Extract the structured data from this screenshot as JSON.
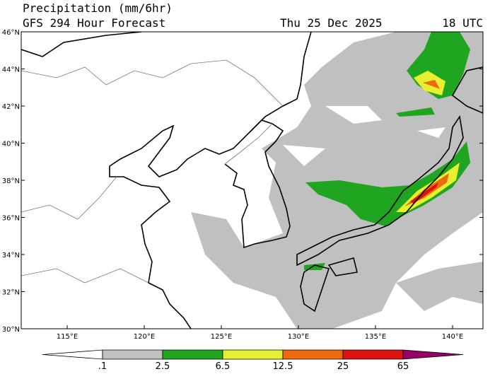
{
  "header": {
    "title": "Precipitation (mm/6hr)",
    "subtitle": "GFS 294 Hour Forecast",
    "date": "Thu 25 Dec 2025",
    "time": "18 UTC"
  },
  "map": {
    "lat_labels": [
      {
        "value": 30,
        "label": "30°N"
      },
      {
        "value": 32,
        "label": "32°N"
      },
      {
        "value": 34,
        "label": "34°N"
      },
      {
        "value": 36,
        "label": "36°N"
      },
      {
        "value": 38,
        "label": "38°N"
      },
      {
        "value": 40,
        "label": "40°N"
      },
      {
        "value": 42,
        "label": "42°N"
      },
      {
        "value": 44,
        "label": "44°N"
      },
      {
        "value": 46,
        "label": "46°N"
      }
    ],
    "lon_labels": [
      {
        "value": 115,
        "label": "115°E"
      },
      {
        "value": 120,
        "label": "120°E"
      },
      {
        "value": 125,
        "label": "125°E"
      },
      {
        "value": 130,
        "label": "130°E"
      },
      {
        "value": 135,
        "label": "135°E"
      },
      {
        "value": 140,
        "label": "140°E"
      }
    ]
  },
  "colorbar": {
    "levels": [
      {
        "value": 0.1,
        "label": ".1"
      },
      2.5,
      6.5,
      12.5,
      25,
      65
    ],
    "colors": [
      "#ffffff",
      "#c0c0c0",
      "#1fa51f",
      "#e6f030",
      "#ee6a0d",
      "#dd1111",
      "#990066"
    ]
  }
}
